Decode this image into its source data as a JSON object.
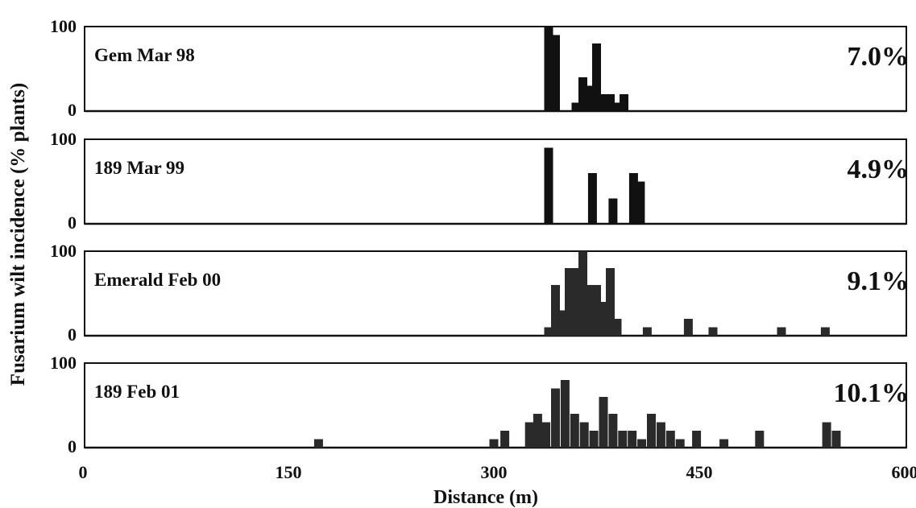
{
  "chart_data": {
    "type": "bar",
    "ylabel": "Fusarium wilt incidence (% plants)",
    "xlabel": "Distance (m)",
    "xlim": [
      0,
      600
    ],
    "ylim": [
      0,
      100
    ],
    "x_ticks": [
      "0",
      "150",
      "300",
      "450",
      "600"
    ],
    "y_ticks": [
      "100",
      "0"
    ],
    "panels": [
      {
        "name": "Gem Mar 98",
        "total": "7.0%",
        "color": "#111111",
        "x": [
          340,
          345,
          360,
          365,
          370,
          375,
          380,
          385,
          390,
          395,
          400
        ],
        "values": [
          100,
          90,
          10,
          40,
          30,
          80,
          20,
          20,
          10,
          20,
          0
        ]
      },
      {
        "name": "189 Mar 99",
        "total": "4.9%",
        "color": "#111111",
        "x": [
          340,
          372,
          387,
          402,
          407
        ],
        "values": [
          90,
          60,
          30,
          60,
          50
        ]
      },
      {
        "name": "Emerald Feb 00",
        "total": "9.1%",
        "color": "#2a2a2a",
        "x": [
          340,
          345,
          350,
          355,
          360,
          365,
          370,
          375,
          380,
          385,
          390,
          395,
          412,
          420,
          442,
          460,
          475,
          510,
          542,
          563
        ],
        "values": [
          10,
          60,
          30,
          80,
          80,
          100,
          60,
          60,
          40,
          80,
          20,
          0,
          10,
          0,
          20,
          10,
          0,
          10,
          10,
          0
        ]
      },
      {
        "name": "189 Feb 01",
        "total": "10.1%",
        "color": "#2a2a2a",
        "x": [
          172,
          300,
          308,
          326,
          332,
          338,
          345,
          352,
          359,
          366,
          373,
          380,
          387,
          394,
          401,
          408,
          415,
          422,
          429,
          436,
          448,
          468,
          494,
          543,
          550
        ],
        "values": [
          10,
          10,
          20,
          30,
          40,
          30,
          70,
          80,
          40,
          30,
          20,
          60,
          40,
          20,
          20,
          10,
          40,
          30,
          20,
          10,
          20,
          10,
          20,
          30,
          20
        ]
      }
    ]
  }
}
